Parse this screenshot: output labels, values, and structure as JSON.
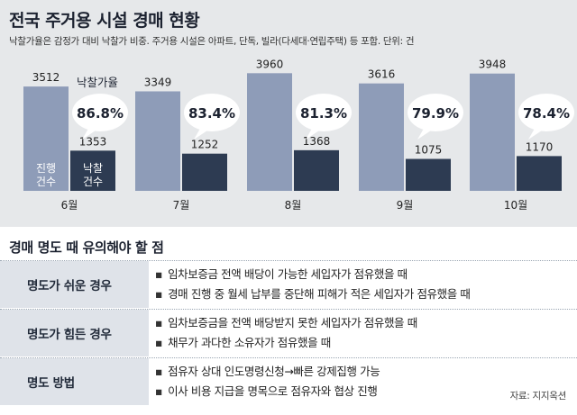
{
  "header": {
    "title": "전국 주거용 시설 경매 현황",
    "subtitle": "낙찰가율은 감정가 대비 낙찰가 비중. 주거용 시설은 아파트, 단독, 빌라(다세대·연립주택) 등 포함. 단위: 건"
  },
  "chart_data": {
    "type": "bar",
    "categories": [
      "6월",
      "7월",
      "8월",
      "9월",
      "10월"
    ],
    "series": [
      {
        "name": "진행건수",
        "values": [
          3512,
          3349,
          3960,
          3616,
          3948
        ],
        "color": "#8e9cb8"
      },
      {
        "name": "낙찰건수",
        "values": [
          1353,
          1252,
          1368,
          1075,
          1170
        ],
        "color": "#2d3b52"
      }
    ],
    "rate_label": "낙찰가율",
    "rates": [
      "86.8%",
      "83.4%",
      "81.3%",
      "79.9%",
      "78.4%"
    ],
    "inline_labels": {
      "progress": "진행\n건수",
      "won": "낙찰\n건수"
    },
    "ylim": [
      0,
      4000
    ]
  },
  "guide": {
    "title": "경매 명도 때 유의해야 할 점",
    "bullet": "▪",
    "rows": [
      {
        "label": "명도가 쉬운 경우",
        "items": [
          "임차보증금 전액 배당이 가능한 세입자가 점유했을 때",
          "경매 진행 중 월세 납부를 중단해 피해가 적은 세입자가 점유했을 때"
        ]
      },
      {
        "label": "명도가 힘든 경우",
        "items": [
          "임차보증금을 전액 배당받지 못한 세입자가 점유했을 때",
          "채무가 과다한 소유자가 점유했을 때"
        ]
      },
      {
        "label": "명도 방법",
        "items": [
          "점유자 상대 인도명령신청→빠른 강제집행 가능",
          "이사 비용 지급을 명목으로 점유자와 협상 진행"
        ]
      }
    ]
  },
  "source": "자료: 지지옥션"
}
